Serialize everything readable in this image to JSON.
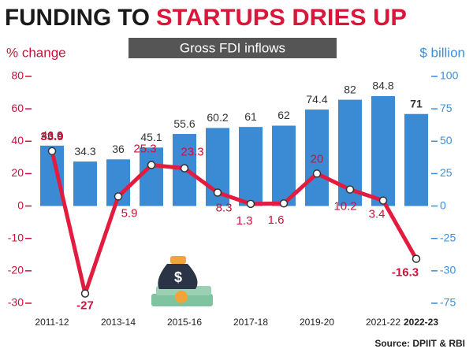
{
  "chart_data": {
    "type": "combo",
    "title": [
      "FUNDING TO",
      "STARTUPS DRIES UP"
    ],
    "subtitle": "Gross FDI inflows",
    "ylabel": "% change",
    "y2label": "$ billion",
    "source": "Source: DPIIT & RBI",
    "categories": [
      "2011-12",
      null,
      "2013-14",
      null,
      "2015-16",
      null,
      "2017-18",
      null,
      "2019-20",
      null,
      "2021-22",
      "2022-23"
    ],
    "ylim": [
      -30,
      80
    ],
    "yticks": [
      -30,
      -20,
      -10,
      0,
      20,
      40,
      60,
      80
    ],
    "y2lim": [
      -75,
      100
    ],
    "y2ticks": [
      -75,
      -30,
      -25,
      0,
      25,
      50,
      75,
      100
    ],
    "series": [
      {
        "type": "bar",
        "axis": "y2",
        "color": "#3b8ad4",
        "values": [
          46.6,
          34.3,
          36,
          45.1,
          55.6,
          60.2,
          61,
          62,
          74.4,
          82,
          84.8,
          71
        ]
      },
      {
        "type": "line",
        "color": "#e31b3f",
        "values": [
          33.9,
          -27,
          5.9,
          25.3,
          23.3,
          8.3,
          1.3,
          1.6,
          20,
          10.2,
          3.4,
          -16.3
        ]
      }
    ]
  }
}
